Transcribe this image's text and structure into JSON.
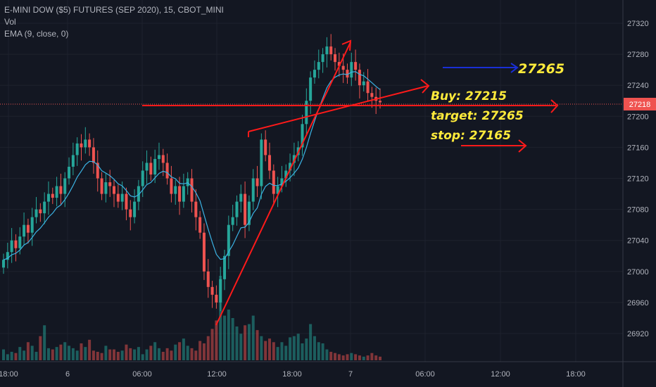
{
  "header": {
    "symbol": "E-MINI DOW ($5) FUTURES (SEP 2020), 15, CBOT_MINI",
    "vol": "Vol",
    "ema": "EMA (9, close, 0)"
  },
  "colors": {
    "up": "#26a69a",
    "down": "#ef5350",
    "ema": "#3bb3e4",
    "annotation": "#ffeb3b",
    "drawing": "#ff1a1a",
    "blue_arrow": "#1a2fd6"
  },
  "chart_data": {
    "type": "candlestick",
    "interval": "15",
    "ylim": [
      26880,
      27340
    ],
    "y_ticks": [
      26920,
      26960,
      27000,
      27040,
      27080,
      27120,
      27160,
      27200,
      27240,
      27280,
      27320
    ],
    "x_ticks": [
      "18:00",
      "6",
      "06:00",
      "12:00",
      "18:00",
      "7",
      "06:00",
      "12:00",
      "18:00"
    ],
    "current_price": 27218,
    "closes": [
      27015,
      27025,
      27040,
      27030,
      27045,
      27060,
      27050,
      27070,
      27080,
      27075,
      27090,
      27100,
      27095,
      27110,
      27100,
      27120,
      27135,
      27150,
      27165,
      27160,
      27170,
      27160,
      27140,
      27120,
      27100,
      27115,
      27110,
      27100,
      27090,
      27100,
      27080,
      27070,
      27090,
      27110,
      27130,
      27140,
      27125,
      27145,
      27150,
      27140,
      27120,
      27100,
      27110,
      27090,
      27110,
      27120,
      27090,
      27070,
      27050,
      27000,
      26980,
      26970,
      26960,
      26990,
      27020,
      27060,
      27070,
      27090,
      27100,
      27060,
      27090,
      27120,
      27110,
      27170,
      27150,
      27130,
      27100,
      27110,
      27120,
      27130,
      27140,
      27150,
      27160,
      27190,
      27220,
      27250,
      27260,
      27270,
      27280,
      27290,
      27280,
      27270,
      27265,
      27260,
      27250,
      27270,
      27260,
      27240,
      27245,
      27230,
      27225,
      27220,
      27218
    ],
    "volumes": [
      18,
      10,
      14,
      12,
      22,
      16,
      30,
      24,
      14,
      40,
      58,
      20,
      18,
      22,
      26,
      30,
      24,
      20,
      16,
      28,
      22,
      34,
      16,
      14,
      12,
      24,
      18,
      18,
      14,
      16,
      26,
      20,
      18,
      22,
      10,
      18,
      24,
      30,
      20,
      14,
      20,
      16,
      26,
      30,
      36,
      24,
      20,
      16,
      32,
      28,
      40,
      52,
      66,
      140,
      74,
      84,
      70,
      56,
      44,
      58,
      60,
      74,
      50,
      40,
      32,
      36,
      30,
      22,
      30,
      24,
      38,
      40,
      44,
      28,
      36,
      60,
      40,
      30,
      28,
      18,
      14,
      12,
      10,
      8,
      10,
      12,
      10,
      8,
      6,
      8,
      12,
      8,
      6
    ],
    "annotations": {
      "buy": "Buy: 27215",
      "target": "target: 27265",
      "stop": "stop: 27165",
      "target_level": "27265"
    }
  }
}
